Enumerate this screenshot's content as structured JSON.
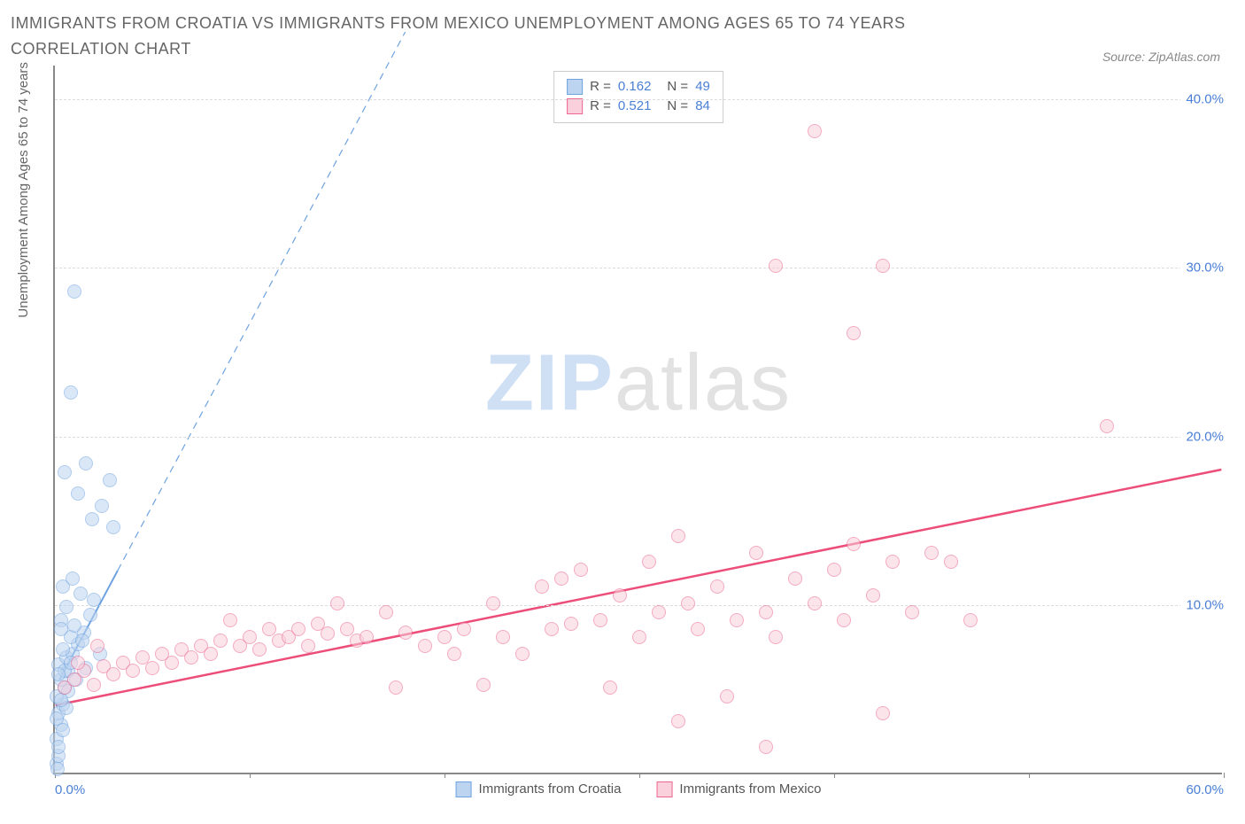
{
  "title": "IMMIGRANTS FROM CROATIA VS IMMIGRANTS FROM MEXICO UNEMPLOYMENT AMONG AGES 65 TO 74 YEARS CORRELATION CHART",
  "source_label": "Source: ZipAtlas.com",
  "ylabel": "Unemployment Among Ages 65 to 74 years",
  "watermark_a": "ZIP",
  "watermark_b": "atlas",
  "chart": {
    "type": "scatter",
    "background_color": "#ffffff",
    "grid_color": "#dcdcdc",
    "axis_color": "#888888",
    "tick_label_color": "#4a7fd6",
    "text_color": "#666666",
    "xlim": [
      0,
      60
    ],
    "ylim": [
      0,
      42
    ],
    "ytick_values": [
      10,
      20,
      30,
      40
    ],
    "ytick_labels": [
      "10.0%",
      "20.0%",
      "30.0%",
      "40.0%"
    ],
    "xtick_values": [
      0,
      10,
      20,
      30,
      40,
      50,
      60
    ],
    "xtick_labels": {
      "0": "0.0%",
      "60": "60.0%"
    },
    "point_radius": 8,
    "point_opacity": 0.55,
    "point_border_width": 1,
    "series": [
      {
        "name": "Immigrants from Croatia",
        "color_fill": "#bcd4f0",
        "color_stroke": "#6fa3e0",
        "R": "0.162",
        "N": "49",
        "trend": {
          "x1": 0.2,
          "y1": 5.5,
          "x2": 3.2,
          "y2": 12.0,
          "dash_x1": 3.2,
          "dash_y1": 12.0,
          "dash_x2": 18.0,
          "dash_y2": 44.0,
          "stroke": "#6fa3e0",
          "width": 2
        },
        "points": [
          [
            0.1,
            0.5
          ],
          [
            0.2,
            1.0
          ],
          [
            0.1,
            2.0
          ],
          [
            0.3,
            2.8
          ],
          [
            0.2,
            3.5
          ],
          [
            0.4,
            4.0
          ],
          [
            0.1,
            4.5
          ],
          [
            0.5,
            5.0
          ],
          [
            0.3,
            5.5
          ],
          [
            0.7,
            6.0
          ],
          [
            0.2,
            6.4
          ],
          [
            0.6,
            6.8
          ],
          [
            0.9,
            7.0
          ],
          [
            0.4,
            7.3
          ],
          [
            1.2,
            7.6
          ],
          [
            0.8,
            8.0
          ],
          [
            1.5,
            8.3
          ],
          [
            1.0,
            8.7
          ],
          [
            0.3,
            9.0
          ],
          [
            1.8,
            9.3
          ],
          [
            0.6,
            9.8
          ],
          [
            2.0,
            10.2
          ],
          [
            1.3,
            10.6
          ],
          [
            0.4,
            11.0
          ],
          [
            0.9,
            11.5
          ],
          [
            1.6,
            6.2
          ],
          [
            2.3,
            7.0
          ],
          [
            0.5,
            6.0
          ],
          [
            1.1,
            5.5
          ],
          [
            0.7,
            4.8
          ],
          [
            0.2,
            5.8
          ],
          [
            0.8,
            6.5
          ],
          [
            1.4,
            7.8
          ],
          [
            0.3,
            8.5
          ],
          [
            1.9,
            15.0
          ],
          [
            2.4,
            15.8
          ],
          [
            1.2,
            16.5
          ],
          [
            2.8,
            17.3
          ],
          [
            0.5,
            17.8
          ],
          [
            1.6,
            18.3
          ],
          [
            3.0,
            14.5
          ],
          [
            0.8,
            22.5
          ],
          [
            1.0,
            28.5
          ],
          [
            0.1,
            3.2
          ],
          [
            0.4,
            2.5
          ],
          [
            0.2,
            1.5
          ],
          [
            0.6,
            3.8
          ],
          [
            0.3,
            4.3
          ],
          [
            0.15,
            0.2
          ]
        ]
      },
      {
        "name": "Immigrants from Mexico",
        "color_fill": "#f9d0db",
        "color_stroke": "#ec6690",
        "R": "0.521",
        "N": "84",
        "trend": {
          "x1": 0,
          "y1": 4.0,
          "x2": 60,
          "y2": 18.0,
          "stroke": "#ec4d79",
          "width": 2.5
        },
        "points": [
          [
            0.5,
            5.0
          ],
          [
            1.0,
            5.5
          ],
          [
            1.5,
            6.0
          ],
          [
            2.0,
            5.2
          ],
          [
            2.5,
            6.3
          ],
          [
            3.0,
            5.8
          ],
          [
            3.5,
            6.5
          ],
          [
            4.0,
            6.0
          ],
          [
            4.5,
            6.8
          ],
          [
            5.0,
            6.2
          ],
          [
            5.5,
            7.0
          ],
          [
            6.0,
            6.5
          ],
          [
            6.5,
            7.3
          ],
          [
            7.0,
            6.8
          ],
          [
            7.5,
            7.5
          ],
          [
            8.0,
            7.0
          ],
          [
            8.5,
            7.8
          ],
          [
            9.0,
            9.0
          ],
          [
            9.5,
            7.5
          ],
          [
            10.0,
            8.0
          ],
          [
            10.5,
            7.3
          ],
          [
            11.0,
            8.5
          ],
          [
            11.5,
            7.8
          ],
          [
            12.0,
            8.0
          ],
          [
            12.5,
            8.5
          ],
          [
            13.0,
            7.5
          ],
          [
            13.5,
            8.8
          ],
          [
            14.0,
            8.2
          ],
          [
            14.5,
            10.0
          ],
          [
            15.0,
            8.5
          ],
          [
            15.5,
            7.8
          ],
          [
            16.0,
            8.0
          ],
          [
            17.0,
            9.5
          ],
          [
            17.5,
            5.0
          ],
          [
            18.0,
            8.3
          ],
          [
            19.0,
            7.5
          ],
          [
            20.0,
            8.0
          ],
          [
            20.5,
            7.0
          ],
          [
            21.0,
            8.5
          ],
          [
            22.0,
            5.2
          ],
          [
            22.5,
            10.0
          ],
          [
            23.0,
            8.0
          ],
          [
            24.0,
            7.0
          ],
          [
            25.0,
            11.0
          ],
          [
            25.5,
            8.5
          ],
          [
            26.0,
            11.5
          ],
          [
            26.5,
            8.8
          ],
          [
            27.0,
            12.0
          ],
          [
            28.0,
            9.0
          ],
          [
            28.5,
            5.0
          ],
          [
            29.0,
            10.5
          ],
          [
            30.0,
            8.0
          ],
          [
            30.5,
            12.5
          ],
          [
            31.0,
            9.5
          ],
          [
            32.0,
            14.0
          ],
          [
            32.5,
            10.0
          ],
          [
            33.0,
            8.5
          ],
          [
            34.0,
            11.0
          ],
          [
            34.5,
            4.5
          ],
          [
            35.0,
            9.0
          ],
          [
            36.0,
            13.0
          ],
          [
            36.5,
            9.5
          ],
          [
            37.0,
            8.0
          ],
          [
            38.0,
            11.5
          ],
          [
            39.0,
            10.0
          ],
          [
            40.0,
            12.0
          ],
          [
            40.5,
            9.0
          ],
          [
            41.0,
            13.5
          ],
          [
            42.0,
            10.5
          ],
          [
            42.5,
            3.5
          ],
          [
            43.0,
            12.5
          ],
          [
            44.0,
            9.5
          ],
          [
            45.0,
            13.0
          ],
          [
            46.0,
            12.5
          ],
          [
            47.0,
            9.0
          ],
          [
            37.0,
            30.0
          ],
          [
            42.5,
            30.0
          ],
          [
            41.0,
            26.0
          ],
          [
            39.0,
            38.0
          ],
          [
            32.0,
            3.0
          ],
          [
            54.0,
            20.5
          ],
          [
            36.5,
            1.5
          ],
          [
            1.2,
            6.5
          ],
          [
            2.2,
            7.5
          ]
        ]
      }
    ]
  },
  "legend_items": [
    "Immigrants from Croatia",
    "Immigrants from Mexico"
  ]
}
